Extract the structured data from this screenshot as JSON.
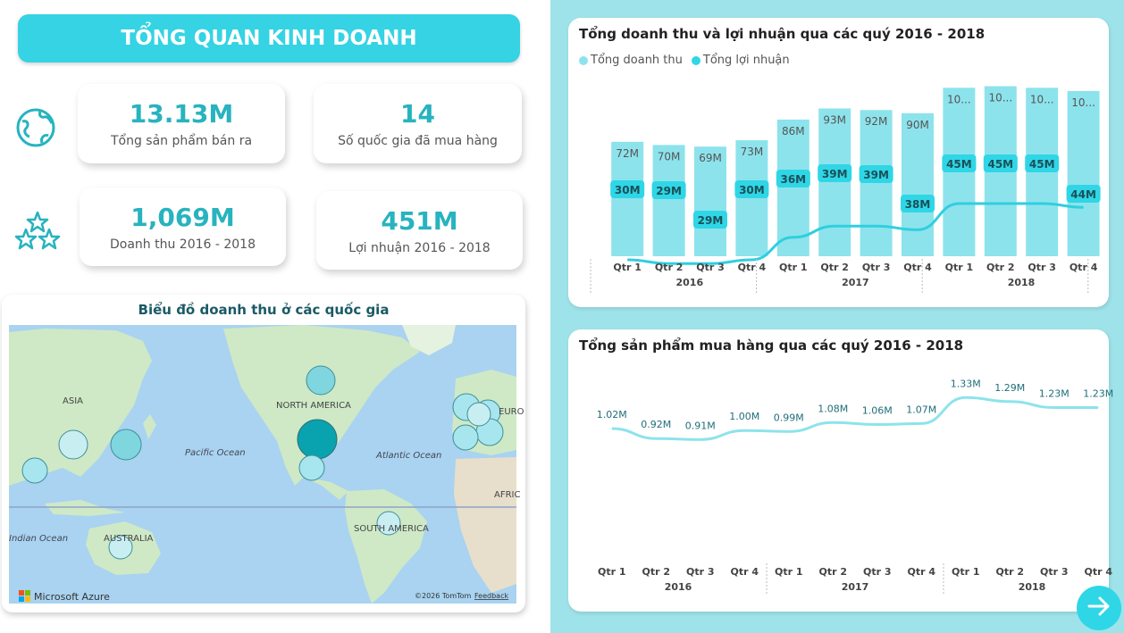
{
  "header": {
    "title": "TỔNG QUAN KINH DOANH"
  },
  "kpis": [
    {
      "value": "13.13M",
      "label": "Tổng sản phẩm bán ra"
    },
    {
      "value": "14",
      "label": "Số quốc gia đã mua hàng"
    },
    {
      "value": "1,069M",
      "label": "Doanh thu 2016 - 2018"
    },
    {
      "value": "451M",
      "label": "Lợi nhuận 2016 - 2018"
    }
  ],
  "icons": {
    "globe": "globe-icon",
    "stars": "stars-icon",
    "next": "arrow-right-icon"
  },
  "map": {
    "title": "Biểu đồ doanh thu ở các quốc gia",
    "labels": {
      "asia": "ASIA",
      "north_america": "NORTH AMERICA",
      "europe": "EURO",
      "africa": "AFRIC",
      "south_america": "SOUTH AMERICA",
      "australia": "AUSTRALIA",
      "pacific": "Pacific Ocean",
      "atlantic": "Atlantic Ocean",
      "indian": "Indian Ocean"
    },
    "attribution": {
      "brand": "Microsoft Azure",
      "copyright": "©2026 TomTom",
      "feedback": "Feedback"
    }
  },
  "colors": {
    "accent": "#35d3e3",
    "bar": "#8de3ec",
    "line": "#2fcfdf",
    "label_bg": "#2fd6e6",
    "panel_bg": "#9fe3ea",
    "value_text": "#27b3bf"
  },
  "chart_data": [
    {
      "type": "bar",
      "title": "Tổng doanh thu và lợi nhuận qua các quý 2016 - 2018",
      "categories": [
        "Qtr 1",
        "Qtr 2",
        "Qtr 3",
        "Qtr 4",
        "Qtr 1",
        "Qtr 2",
        "Qtr 3",
        "Qtr 4",
        "Qtr 1",
        "Qtr 2",
        "Qtr 3",
        "Qtr 4"
      ],
      "groups": [
        "2016",
        "2017",
        "2018"
      ],
      "series": [
        {
          "name": "Tổng doanh thu",
          "type": "bar",
          "values": [
            72,
            70,
            69,
            73,
            86,
            93,
            92,
            90,
            106,
            107,
            106,
            104
          ],
          "labels": [
            "72M",
            "70M",
            "69M",
            "73M",
            "86M",
            "93M",
            "92M",
            "90M",
            "10...",
            "10...",
            "10...",
            "10..."
          ]
        },
        {
          "name": "Tổng lợi nhuận",
          "type": "line",
          "values": [
            30,
            29,
            29,
            30,
            36,
            39,
            39,
            38,
            45,
            45,
            45,
            44
          ],
          "labels": [
            "30M",
            "29M",
            "29M",
            "30M",
            "36M",
            "39M",
            "39M",
            "38M",
            "45M",
            "45M",
            "45M",
            "44M"
          ]
        }
      ],
      "legend": "top-left"
    },
    {
      "type": "line",
      "title": "Tổng sản phẩm mua hàng qua các quý 2016 - 2018",
      "categories": [
        "Qtr 1",
        "Qtr 2",
        "Qtr 3",
        "Qtr 4",
        "Qtr 1",
        "Qtr 2",
        "Qtr 3",
        "Qtr 4",
        "Qtr 1",
        "Qtr 2",
        "Qtr 3",
        "Qtr 4"
      ],
      "groups": [
        "2016",
        "2017",
        "2018"
      ],
      "values": [
        1.02,
        0.92,
        0.91,
        1.0,
        0.99,
        1.08,
        1.06,
        1.07,
        1.33,
        1.29,
        1.23,
        1.23
      ],
      "labels": [
        "1.02M",
        "0.92M",
        "0.91M",
        "1.00M",
        "0.99M",
        "1.08M",
        "1.06M",
        "1.07M",
        "1.33M",
        "1.29M",
        "1.23M",
        "1.23M"
      ]
    }
  ]
}
